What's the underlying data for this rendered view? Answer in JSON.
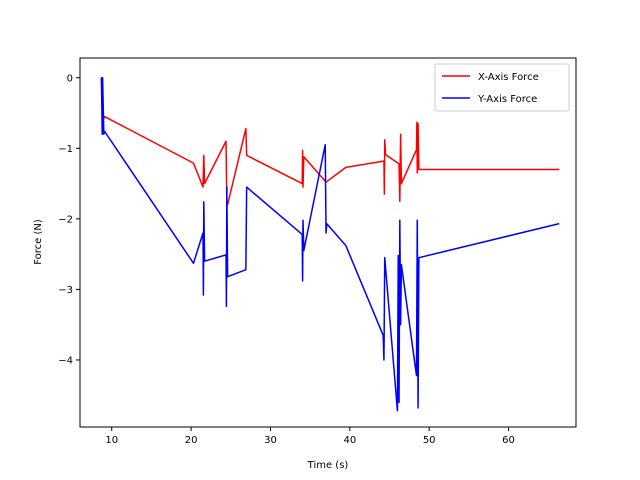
{
  "chart_data": {
    "type": "line",
    "xlabel": "Time (s)",
    "ylabel": "Force (N)",
    "xlim": [
      6.0,
      68.5
    ],
    "ylim": [
      -4.95,
      0.28
    ],
    "x_ticks": [
      10,
      20,
      30,
      40,
      50,
      60
    ],
    "y_ticks": [
      0,
      -1,
      -2,
      -3,
      -4
    ],
    "grid": false,
    "legend_position": "top-right",
    "series": [
      {
        "name": "X-Axis Force",
        "color": "#ff0000",
        "points": [
          [
            8.7,
            0.0
          ],
          [
            8.85,
            -0.55
          ],
          [
            9.0,
            -0.58
          ],
          [
            9.1,
            -0.55
          ],
          [
            20.3,
            -1.21
          ],
          [
            21.5,
            -1.55
          ],
          [
            21.6,
            -1.1
          ],
          [
            21.7,
            -1.5
          ],
          [
            24.4,
            -0.9
          ],
          [
            24.5,
            -1.75
          ],
          [
            24.6,
            -1.8
          ],
          [
            26.9,
            -0.72
          ],
          [
            27.0,
            -1.1
          ],
          [
            34.0,
            -1.5
          ],
          [
            34.05,
            -1.03
          ],
          [
            34.1,
            -1.55
          ],
          [
            34.2,
            -1.12
          ],
          [
            37.0,
            -1.48
          ],
          [
            39.5,
            -1.27
          ],
          [
            44.3,
            -1.18
          ],
          [
            44.35,
            -1.65
          ],
          [
            44.4,
            -0.88
          ],
          [
            44.5,
            -1.09
          ],
          [
            46.2,
            -1.22
          ],
          [
            46.3,
            -1.75
          ],
          [
            46.4,
            -0.8
          ],
          [
            46.5,
            -1.5
          ],
          [
            48.4,
            -1.02
          ],
          [
            48.45,
            -0.63
          ],
          [
            48.5,
            -1.35
          ],
          [
            48.6,
            -0.65
          ],
          [
            48.7,
            -1.3
          ],
          [
            66.3,
            -1.3
          ]
        ]
      },
      {
        "name": "Y-Axis Force",
        "color": "#0000ff",
        "points": [
          [
            8.7,
            -0.02
          ],
          [
            8.8,
            -0.8
          ],
          [
            8.85,
            0.0
          ],
          [
            9.0,
            -0.8
          ],
          [
            9.1,
            -0.76
          ],
          [
            20.3,
            -2.63
          ],
          [
            21.5,
            -2.2
          ],
          [
            21.55,
            -3.08
          ],
          [
            21.6,
            -1.76
          ],
          [
            21.7,
            -2.6
          ],
          [
            24.4,
            -2.51
          ],
          [
            24.45,
            -3.24
          ],
          [
            24.5,
            -1.55
          ],
          [
            24.6,
            -2.82
          ],
          [
            26.9,
            -2.72
          ],
          [
            27.0,
            -1.55
          ],
          [
            34.0,
            -2.22
          ],
          [
            34.05,
            -2.88
          ],
          [
            34.1,
            -2.02
          ],
          [
            34.2,
            -2.45
          ],
          [
            36.9,
            -0.95
          ],
          [
            37.0,
            -2.2
          ],
          [
            37.1,
            -2.07
          ],
          [
            39.5,
            -2.38
          ],
          [
            44.2,
            -3.65
          ],
          [
            44.3,
            -4.0
          ],
          [
            44.4,
            -2.55
          ],
          [
            46.0,
            -4.72
          ],
          [
            46.1,
            -2.52
          ],
          [
            46.2,
            -4.6
          ],
          [
            46.3,
            -2.02
          ],
          [
            46.4,
            -3.5
          ],
          [
            46.5,
            -2.65
          ],
          [
            48.4,
            -4.22
          ],
          [
            48.5,
            -2.02
          ],
          [
            48.6,
            -4.68
          ],
          [
            48.7,
            -2.55
          ],
          [
            66.3,
            -2.07
          ]
        ]
      }
    ]
  }
}
